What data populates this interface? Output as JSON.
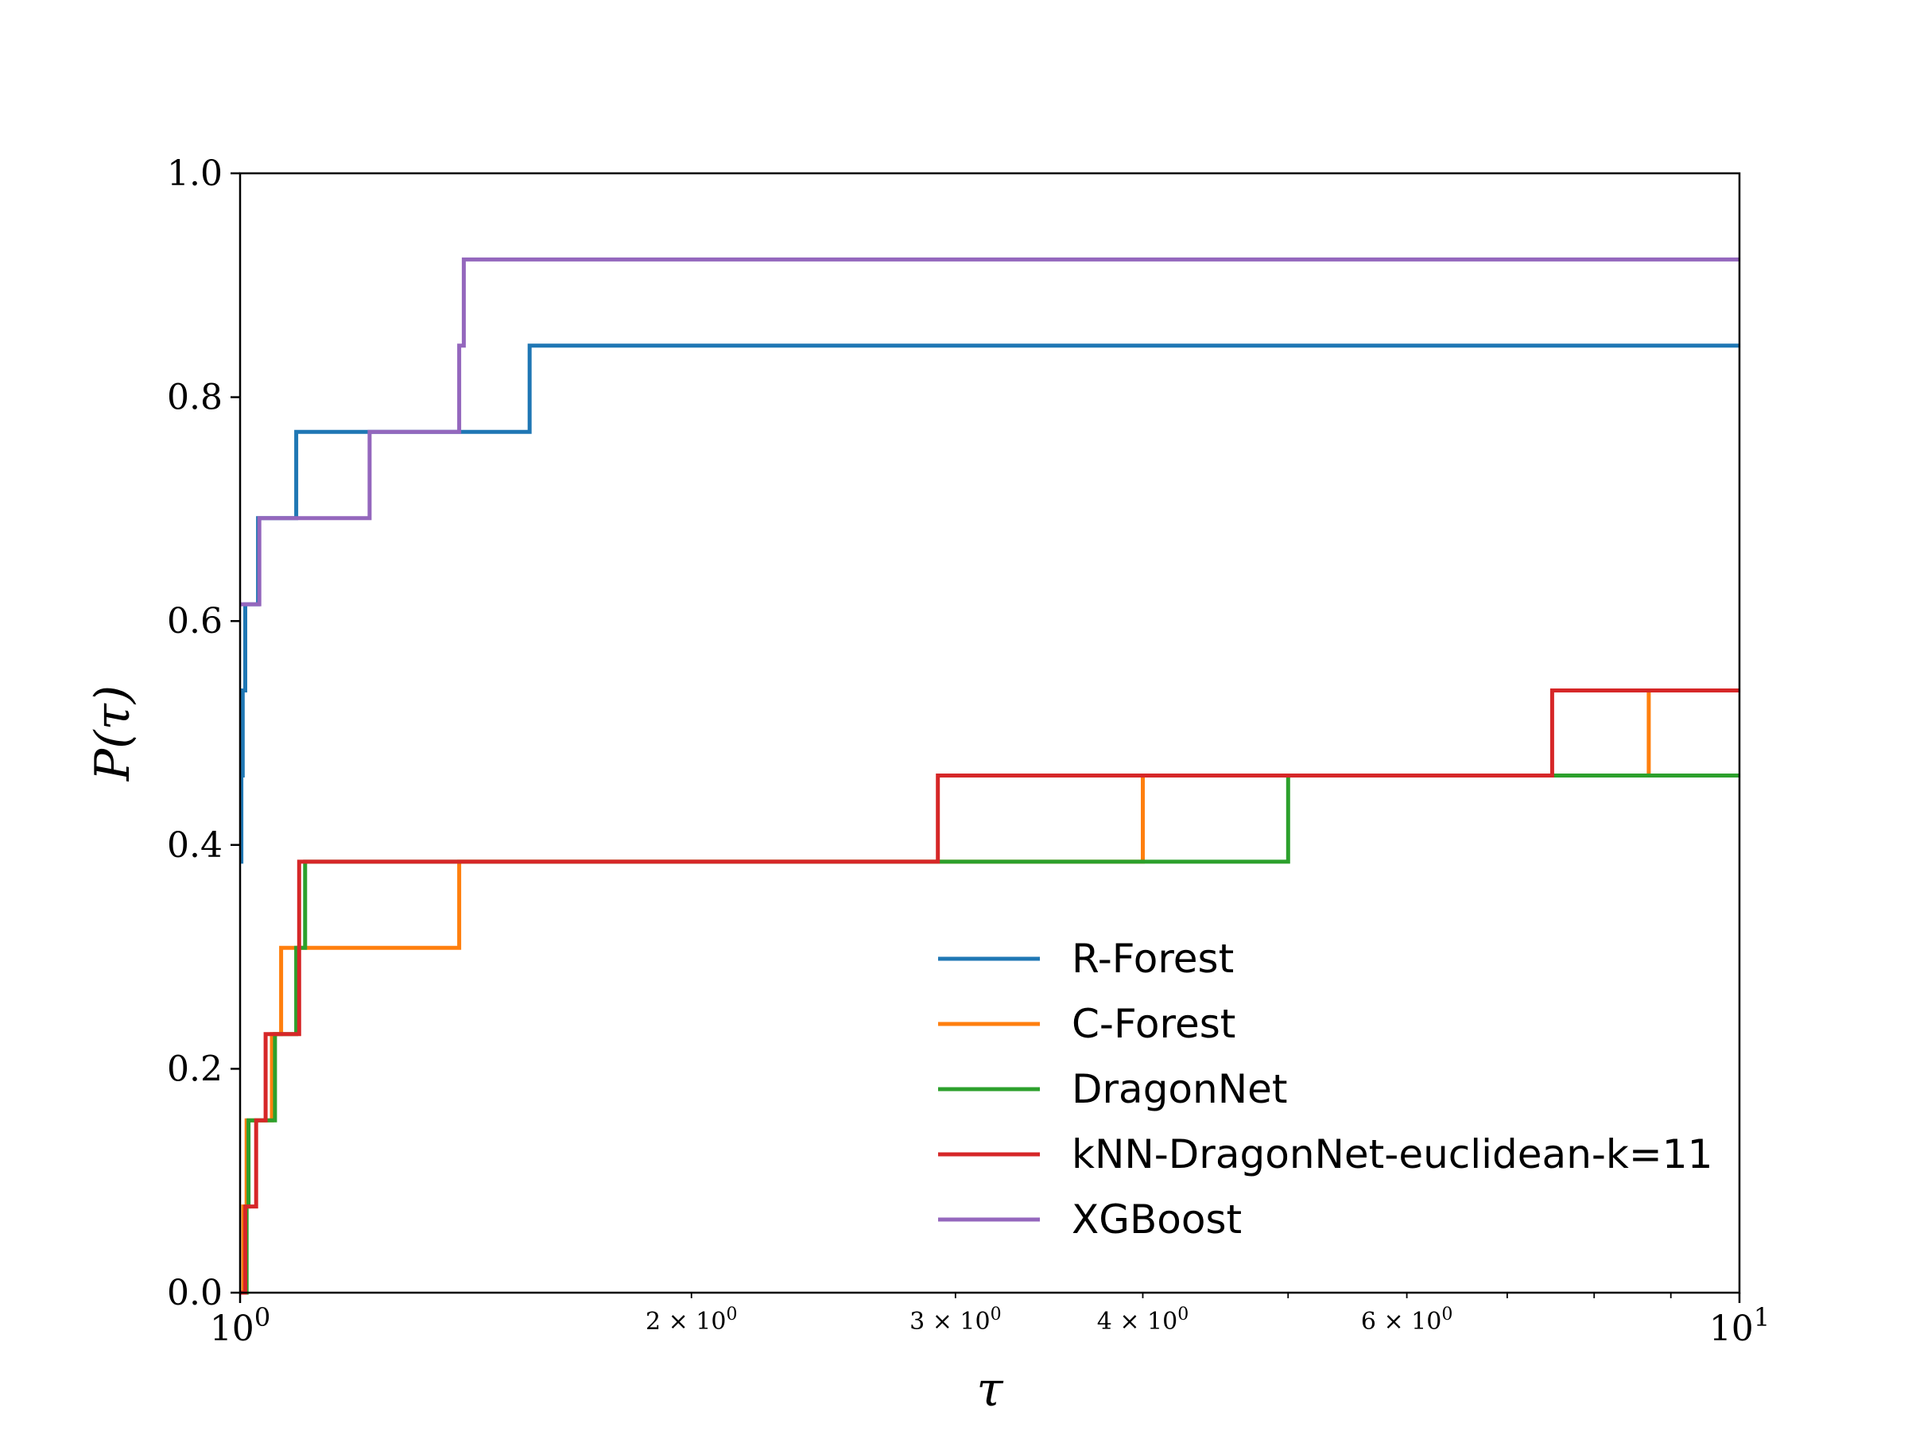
{
  "chart_data": {
    "type": "line",
    "step": "post",
    "xscale": "log",
    "xlim": [
      1,
      10
    ],
    "ylim": [
      0,
      1.0
    ],
    "xlabel": "τ",
    "ylabel": "P(τ)",
    "grid": false,
    "legend_position": "lower-right",
    "x_ticks": [
      {
        "value": 1,
        "base": "10",
        "exp": "0",
        "minor": false
      },
      {
        "value": 2,
        "base": "2 × 10",
        "exp": "0",
        "minor": true
      },
      {
        "value": 3,
        "base": "3 × 10",
        "exp": "0",
        "minor": true
      },
      {
        "value": 4,
        "base": "4 × 10",
        "exp": "0",
        "minor": true
      },
      {
        "value": 6,
        "base": "6 × 10",
        "exp": "0",
        "minor": true
      },
      {
        "value": 10,
        "base": "10",
        "exp": "1",
        "minor": false
      }
    ],
    "y_ticks": [
      {
        "value": 0.0,
        "label": "0.0"
      },
      {
        "value": 0.2,
        "label": "0.2"
      },
      {
        "value": 0.4,
        "label": "0.4"
      },
      {
        "value": 0.6,
        "label": "0.6"
      },
      {
        "value": 0.8,
        "label": "0.8"
      },
      {
        "value": 1.0,
        "label": "1.0"
      }
    ],
    "series": [
      {
        "name": "R-Forest",
        "color": "#1f77b4",
        "points": [
          [
            1.0,
            0.385
          ],
          [
            1.002,
            0.462
          ],
          [
            1.004,
            0.538
          ],
          [
            1.008,
            0.615
          ],
          [
            1.028,
            0.692
          ],
          [
            1.09,
            0.769
          ],
          [
            1.56,
            0.846
          ],
          [
            10,
            0.846
          ]
        ]
      },
      {
        "name": "C-Forest",
        "color": "#ff7f0e",
        "points": [
          [
            1.0,
            0.0
          ],
          [
            1.005,
            0.077
          ],
          [
            1.01,
            0.154
          ],
          [
            1.05,
            0.231
          ],
          [
            1.065,
            0.308
          ],
          [
            1.4,
            0.385
          ],
          [
            4.0,
            0.462
          ],
          [
            8.7,
            0.538
          ],
          [
            10,
            0.538
          ]
        ]
      },
      {
        "name": "DragonNet",
        "color": "#2ca02c",
        "points": [
          [
            1.0,
            0.0
          ],
          [
            1.01,
            0.077
          ],
          [
            1.013,
            0.154
          ],
          [
            1.055,
            0.231
          ],
          [
            1.09,
            0.308
          ],
          [
            1.105,
            0.385
          ],
          [
            5.0,
            0.462
          ],
          [
            10,
            0.462
          ]
        ]
      },
      {
        "name": "kNN-DragonNet-euclidean-k=11",
        "color": "#d62728",
        "points": [
          [
            1.0,
            0.0
          ],
          [
            1.008,
            0.077
          ],
          [
            1.025,
            0.154
          ],
          [
            1.04,
            0.231
          ],
          [
            1.095,
            0.385
          ],
          [
            2.92,
            0.462
          ],
          [
            7.5,
            0.538
          ],
          [
            10,
            0.538
          ]
        ]
      },
      {
        "name": "XGBoost",
        "color": "#9467bd",
        "points": [
          [
            1.0,
            0.615
          ],
          [
            1.03,
            0.692
          ],
          [
            1.22,
            0.769
          ],
          [
            1.4,
            0.846
          ],
          [
            1.41,
            0.923
          ],
          [
            10,
            0.923
          ]
        ]
      }
    ]
  }
}
